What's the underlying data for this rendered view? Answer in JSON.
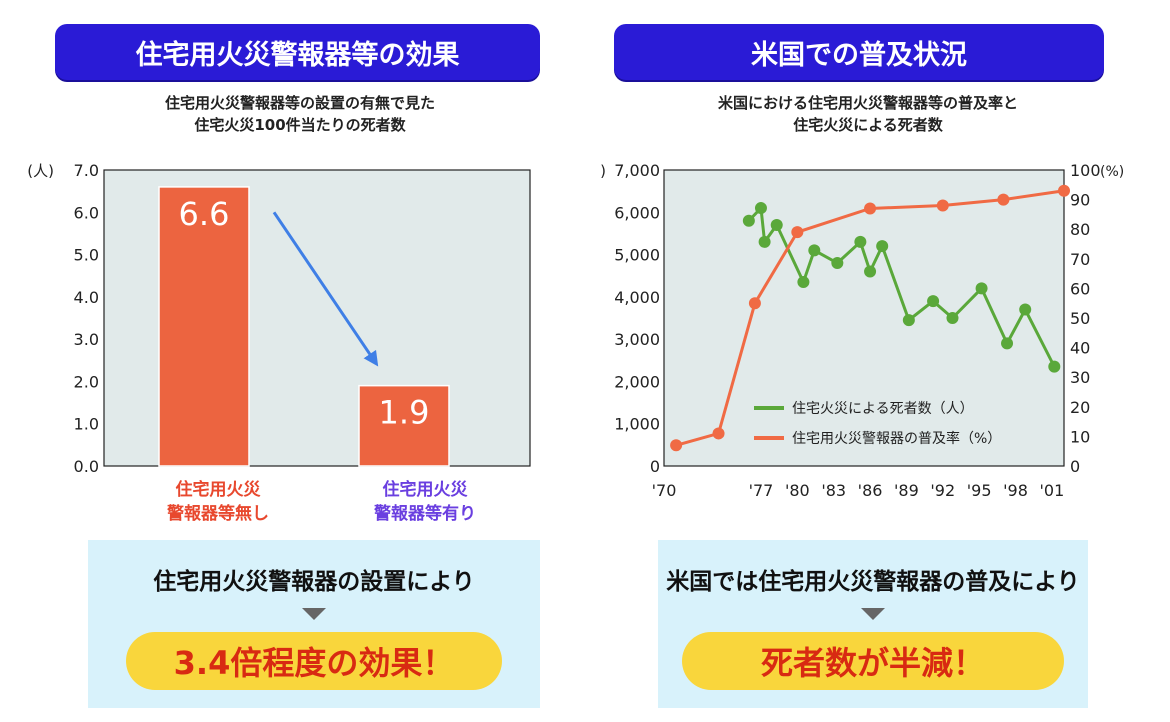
{
  "left": {
    "header": "住宅用火災警報器等の効果",
    "subtitle_lines": [
      "住宅用火災警報器等の設置の有無で見た",
      "住宅火災100件当たりの死者数"
    ],
    "bar_captions": [
      {
        "line1": "住宅用火災",
        "line2": "警報器等無し",
        "color": "#e8482e"
      },
      {
        "line1": "住宅用火災",
        "line2": "警報器等有り",
        "color": "#6a3fe0"
      }
    ],
    "callout": {
      "message": "住宅用火災警報器の設置により",
      "highlight": "3.4倍程度の効果！"
    }
  },
  "right": {
    "header": "米国での普及状況",
    "subtitle_lines": [
      "米国における住宅用火災警報器等の普及率と",
      "住宅火災による死者数"
    ],
    "callout": {
      "message": "米国では住宅用火災警報器の普及により",
      "highlight": "死者数が半減！"
    }
  },
  "colors": {
    "header_bg": "#2a1bd6",
    "bar": "#ec6440",
    "arrow": "#3f7fe6",
    "plot_bg": "#e1eaea",
    "green_series": "#5aa83a",
    "orange_series": "#f06a44",
    "callout_bg": "#d8f2fb",
    "pill_bg": "#f9d63c",
    "pill_text": "#d82a12"
  },
  "chart_data": [
    {
      "type": "bar",
      "unit_label": "(人)",
      "categories": [
        "住宅用火災 警報器等無し",
        "住宅用火災 警報器等有り"
      ],
      "values": [
        6.6,
        1.9
      ],
      "value_labels": [
        "6.6",
        "1.9"
      ],
      "ylim": [
        0,
        7
      ],
      "yticks": [
        "0.0",
        "1.0",
        "2.0",
        "3.0",
        "4.0",
        "5.0",
        "6.0",
        "7.0"
      ],
      "annotation": "arrow from first bar to second bar",
      "grid": false
    },
    {
      "type": "line",
      "left_unit_label": "(人)",
      "right_unit_label": "(%)",
      "xticks": [
        "'70",
        "'77",
        "'80",
        "'83",
        "'86",
        "'89",
        "'92",
        "'95",
        "'98",
        "'01"
      ],
      "yticks_left": [
        "0",
        "1,000",
        "2,000",
        "3,000",
        "4,000",
        "5,000",
        "6,000",
        "7,000"
      ],
      "yticks_right": [
        "0",
        "10",
        "20",
        "30",
        "40",
        "50",
        "60",
        "70",
        "80",
        "90",
        "100"
      ],
      "ylim_left": [
        0,
        7000
      ],
      "ylim_right": [
        0,
        100
      ],
      "xlim": [
        1969,
        2002
      ],
      "legend_position": "bottom-right",
      "series": [
        {
          "name": "住宅火災による死者数（人）",
          "axis": "left",
          "color": "#5aa83a",
          "x": [
            1976,
            1977,
            1977.3,
            1978.3,
            1980.5,
            1981.4,
            1983.3,
            1985.2,
            1986,
            1987,
            1989.2,
            1991.2,
            1992.8,
            1995.2,
            1997.3,
            1998.8,
            2001.2
          ],
          "y": [
            5800,
            6100,
            5300,
            5700,
            4350,
            5100,
            4800,
            5300,
            4600,
            5200,
            3450,
            3900,
            3500,
            4200,
            2900,
            3700,
            2350
          ]
        },
        {
          "name": "住宅用火災警報器の普及率（%）",
          "axis": "right",
          "color": "#f06a44",
          "x": [
            1970,
            1973.5,
            1976.5,
            1980,
            1986,
            1992,
            1997,
            2002
          ],
          "y": [
            7,
            11,
            55,
            79,
            87,
            88,
            90,
            93
          ]
        }
      ],
      "grid": false
    }
  ]
}
